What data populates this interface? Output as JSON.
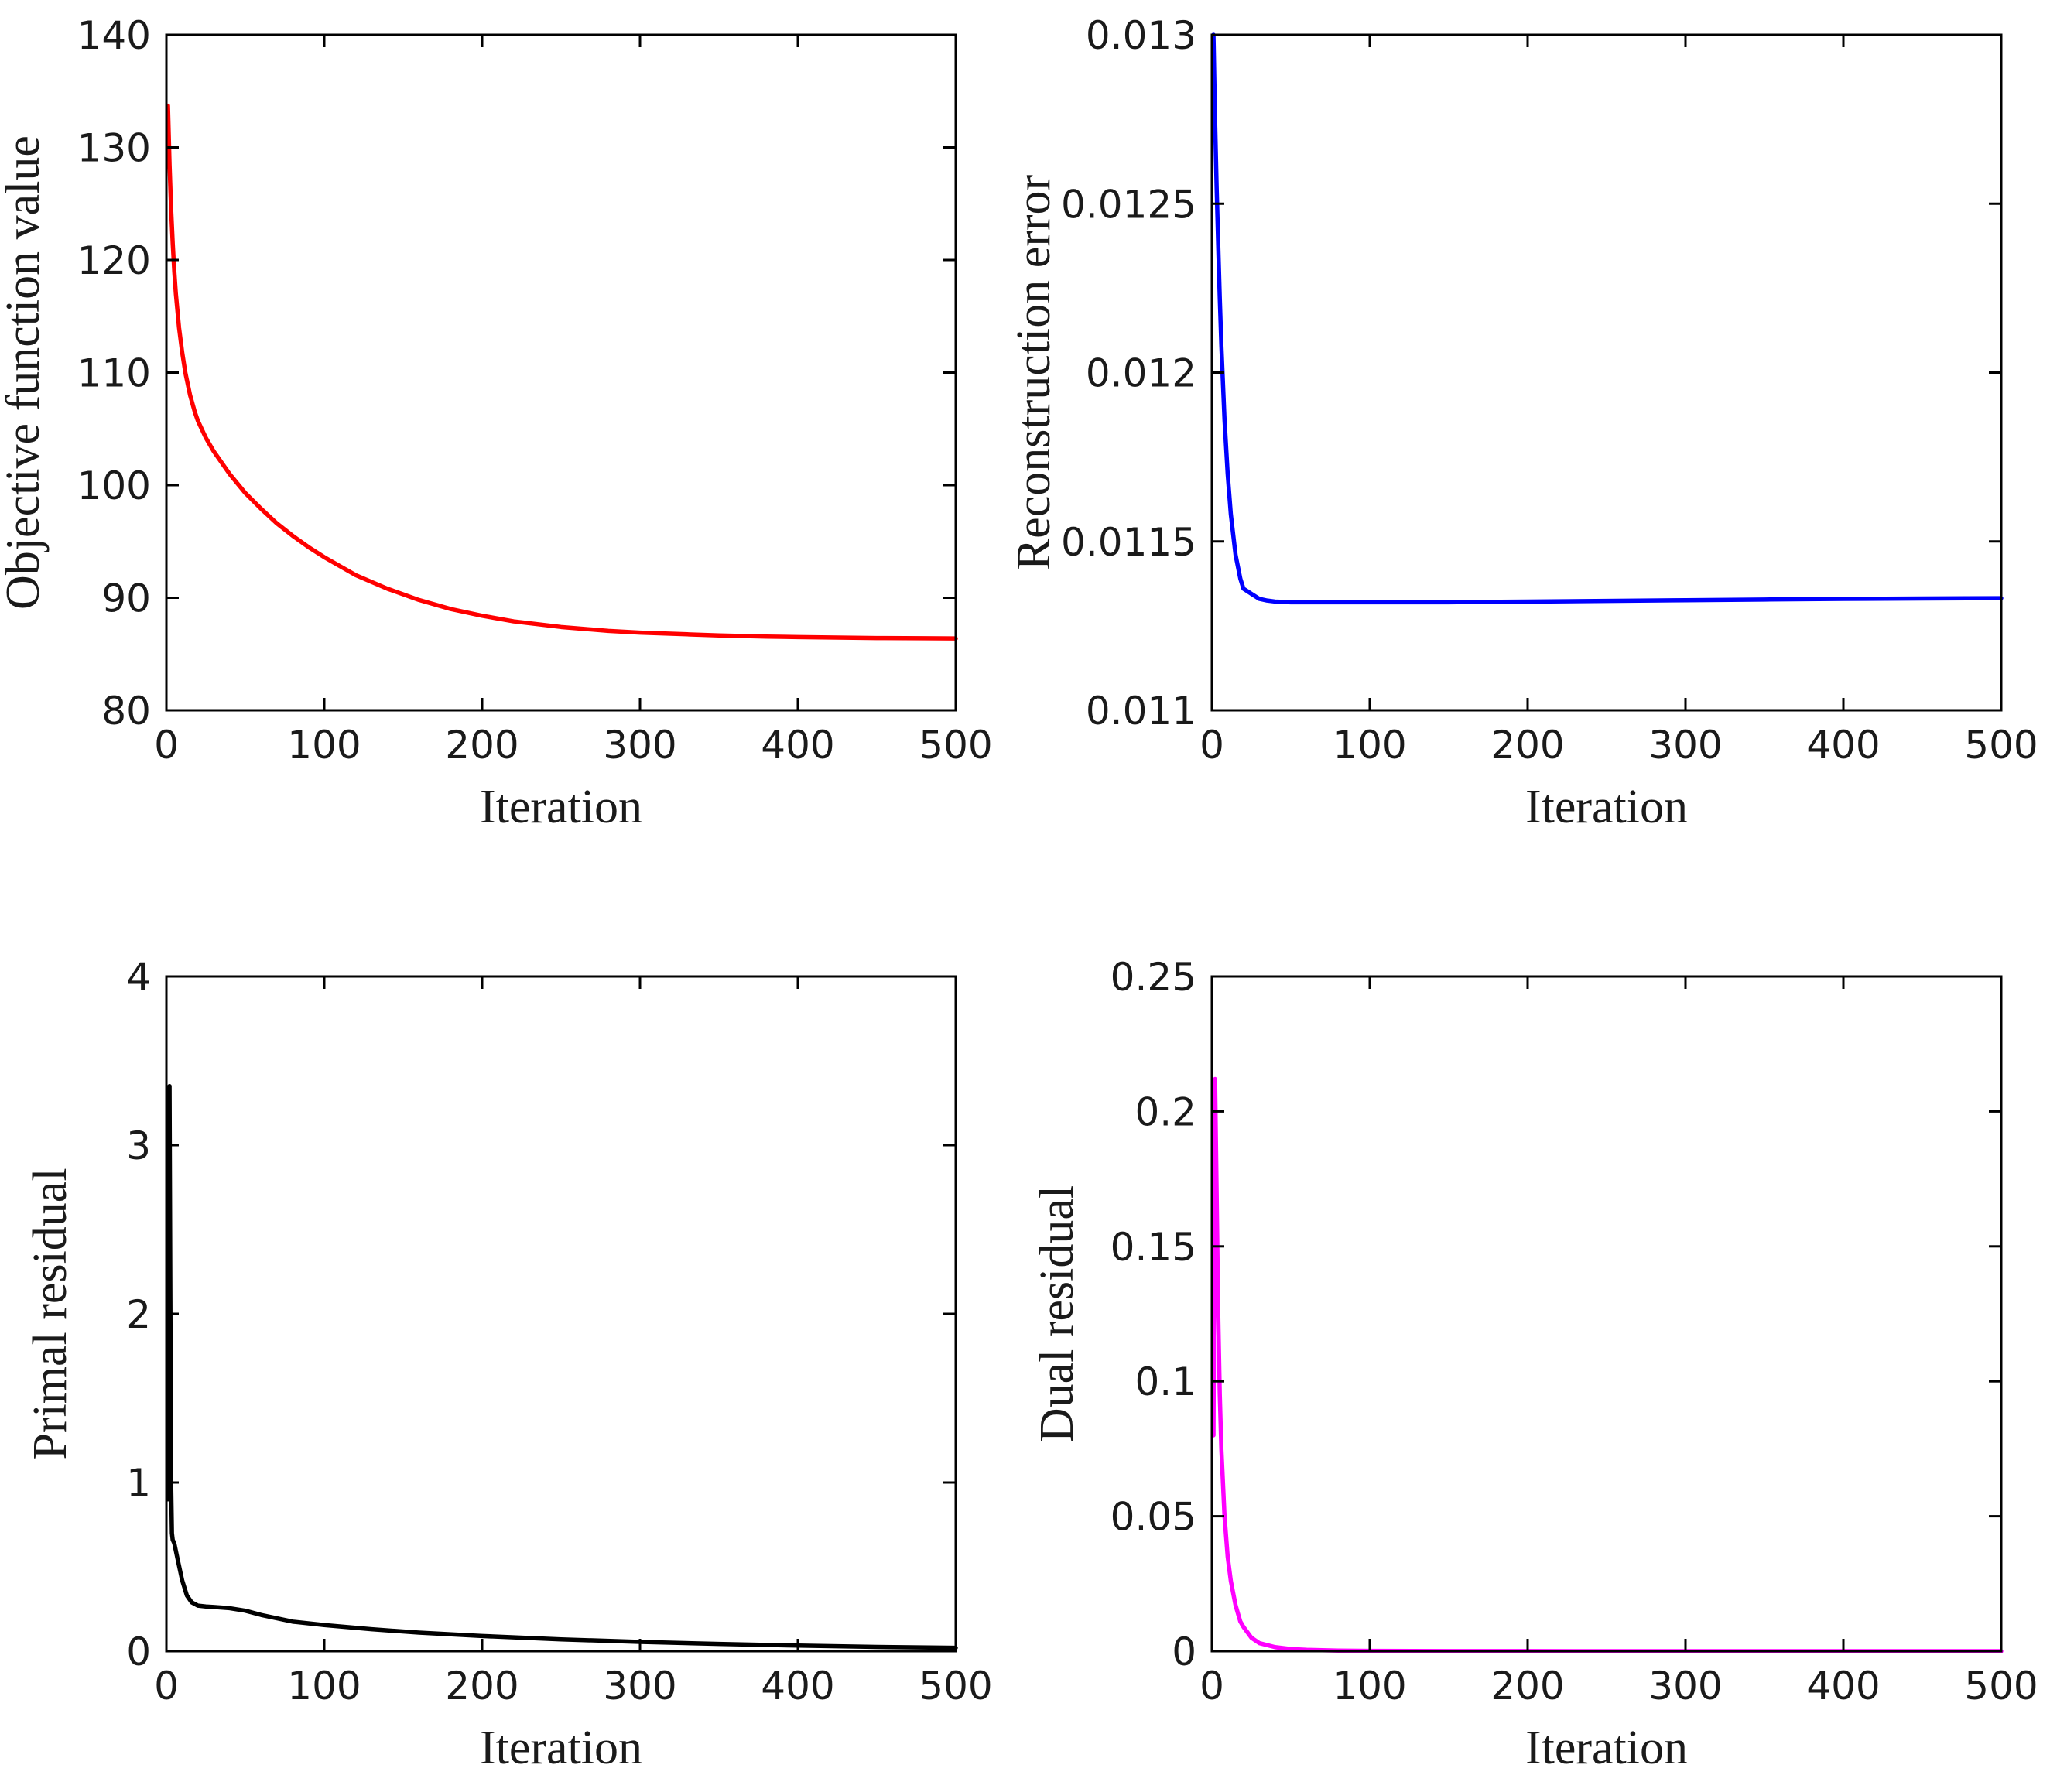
{
  "chart_data": [
    {
      "type": "line",
      "xlabel": "Iteration",
      "ylabel": "Objective function value",
      "xlim": [
        0,
        500
      ],
      "ylim": [
        80,
        140
      ],
      "xticks": [
        "0",
        "100",
        "200",
        "300",
        "400",
        "500"
      ],
      "yticks": [
        "80",
        "90",
        "100",
        "110",
        "120",
        "130",
        "140"
      ],
      "color": "#ff0000",
      "series": [
        {
          "name": "Objective function value",
          "x": [
            1,
            2,
            3,
            4,
            5,
            6,
            8,
            10,
            12,
            15,
            18,
            20,
            25,
            30,
            40,
            50,
            60,
            70,
            80,
            90,
            100,
            120,
            140,
            160,
            180,
            200,
            220,
            250,
            280,
            300,
            330,
            350,
            380,
            400,
            430,
            450,
            480,
            500
          ],
          "y": [
            133.7,
            128.5,
            124.5,
            121.5,
            119.0,
            117.0,
            114.0,
            111.8,
            110.0,
            108.0,
            106.5,
            105.7,
            104.2,
            103.0,
            101.0,
            99.3,
            97.9,
            96.6,
            95.5,
            94.5,
            93.6,
            92.0,
            90.8,
            89.8,
            89.0,
            88.4,
            87.9,
            87.4,
            87.05,
            86.9,
            86.75,
            86.65,
            86.55,
            86.5,
            86.45,
            86.42,
            86.4,
            86.38
          ]
        }
      ]
    },
    {
      "type": "line",
      "xlabel": "Iteration",
      "ylabel": "Reconstruction error",
      "xlim": [
        0,
        500
      ],
      "ylim": [
        0.011,
        0.013
      ],
      "xticks": [
        "0",
        "100",
        "200",
        "300",
        "400",
        "500"
      ],
      "yticks": [
        "0.011",
        "0.0115",
        "0.012",
        "0.0125",
        "0.013"
      ],
      "color": "#0000ff",
      "series": [
        {
          "name": "Reconstruction error",
          "x": [
            1,
            2,
            3,
            4,
            5,
            6,
            8,
            10,
            12,
            15,
            18,
            20,
            25,
            30,
            35,
            40,
            50,
            60,
            70,
            100,
            150,
            200,
            250,
            300,
            350,
            400,
            450,
            500
          ],
          "y": [
            0.013,
            0.01275,
            0.01255,
            0.01238,
            0.01222,
            0.01208,
            0.01186,
            0.0117,
            0.01158,
            0.01146,
            0.01139,
            0.01136,
            0.011345,
            0.01133,
            0.011325,
            0.011322,
            0.01132,
            0.01132,
            0.01132,
            0.01132,
            0.01132,
            0.011322,
            0.011324,
            0.011326,
            0.011328,
            0.01133,
            0.011331,
            0.011332
          ]
        }
      ]
    },
    {
      "type": "line",
      "xlabel": "Iteration",
      "ylabel": "Primal residual",
      "xlim": [
        0,
        500
      ],
      "ylim": [
        0,
        4
      ],
      "xticks": [
        "0",
        "100",
        "200",
        "300",
        "400",
        "500"
      ],
      "yticks": [
        "0",
        "1",
        "2",
        "3",
        "4"
      ],
      "color": "#000000",
      "series": [
        {
          "name": "Primal residual",
          "x": [
            1,
            1.5,
            2,
            2.5,
            3,
            3.5,
            4,
            5,
            7,
            10,
            13,
            16,
            20,
            25,
            30,
            40,
            50,
            60,
            80,
            100,
            130,
            160,
            200,
            250,
            300,
            350,
            400,
            450,
            500
          ],
          "y": [
            0.9,
            2.2,
            3.35,
            2.1,
            1.0,
            0.7,
            0.66,
            0.64,
            0.55,
            0.42,
            0.33,
            0.29,
            0.27,
            0.265,
            0.262,
            0.255,
            0.24,
            0.215,
            0.175,
            0.155,
            0.13,
            0.11,
            0.09,
            0.07,
            0.055,
            0.043,
            0.033,
            0.025,
            0.02
          ]
        }
      ]
    },
    {
      "type": "line",
      "xlabel": "Iteration",
      "ylabel": "Dual residual",
      "xlim": [
        0,
        500
      ],
      "ylim": [
        0,
        0.25
      ],
      "xticks": [
        "0",
        "100",
        "200",
        "300",
        "400",
        "500"
      ],
      "yticks": [
        "0",
        "0.05",
        "0.1",
        "0.15",
        "0.2",
        "0.25"
      ],
      "color": "#ff00ff",
      "series": [
        {
          "name": "Dual residual",
          "x": [
            1,
            2,
            3,
            4,
            5,
            6,
            8,
            10,
            12,
            15,
            18,
            20,
            25,
            30,
            40,
            50,
            60,
            80,
            100,
            150,
            200,
            300,
            400,
            500
          ],
          "y": [
            0.08,
            0.212,
            0.17,
            0.125,
            0.095,
            0.075,
            0.05,
            0.035,
            0.026,
            0.017,
            0.011,
            0.009,
            0.005,
            0.003,
            0.0015,
            0.0008,
            0.0005,
            0.0002,
            0.0001,
            5e-05,
            2e-05,
            1e-05,
            0.0,
            0.0
          ]
        }
      ]
    }
  ]
}
